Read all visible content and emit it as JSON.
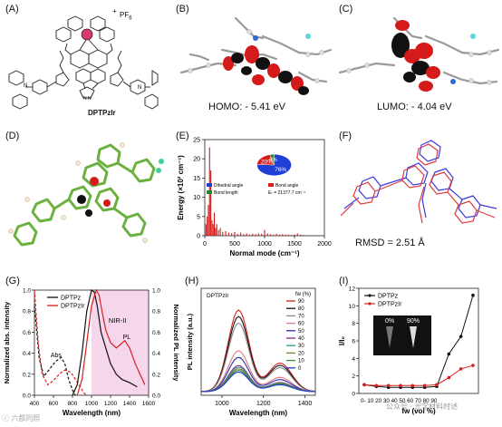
{
  "panels": {
    "A": {
      "label": "(A)",
      "molecule_name": "DPTPzIr",
      "counter_ion": "PF",
      "counter_ion_sub": "6",
      "charge": "+"
    },
    "B": {
      "label": "(B)",
      "caption": "HOMO: - 5.41 eV"
    },
    "C": {
      "label": "(C)",
      "caption": "LUMO: - 4.04 eV"
    },
    "D": {
      "label": "(D)"
    },
    "E": {
      "label": "(E)"
    },
    "F": {
      "label": "(F)",
      "caption": "RMSD = 2.51 Å"
    },
    "G": {
      "label": "(G)",
      "annotation_nir": "NIR-II",
      "annotation_abs": "Abs",
      "annotation_pl": "PL"
    },
    "H": {
      "label": "(H)",
      "title_inset": "DPTPzIr"
    },
    "I": {
      "label": "(I)",
      "inset_labels": [
        "0%",
        "90%"
      ]
    }
  },
  "watermark": {
    "left": "ⓒ 六都同照",
    "right": "公众号 · 光学材料时述"
  },
  "chart_data": [
    {
      "id": "E",
      "type": "bar",
      "xlabel": "Normal mode (cm⁻¹)",
      "ylabel": "Energy (×10² cm⁻¹)",
      "xlim": [
        0,
        2000
      ],
      "ylim": [
        0,
        25
      ],
      "xticks": [
        "0",
        "500",
        "1000",
        "1500",
        "2000"
      ],
      "yticks": [
        "0",
        "5",
        "10",
        "15",
        "20",
        "25"
      ],
      "x": [
        20,
        40,
        60,
        80,
        100,
        120,
        140,
        160,
        180,
        200,
        230,
        260,
        300,
        350,
        400,
        450,
        500,
        550,
        600,
        650,
        700,
        750,
        800,
        850,
        900,
        950,
        1000,
        1050,
        1100,
        1150,
        1200,
        1250,
        1300,
        1350,
        1400,
        1450,
        1500,
        1550,
        1600,
        1650
      ],
      "values": [
        3,
        5,
        8,
        23,
        17,
        4,
        3,
        6,
        2,
        3,
        1.5,
        2,
        1,
        1.2,
        0.8,
        0.7,
        1,
        0.5,
        0.8,
        0.4,
        0.6,
        0.3,
        0.5,
        0.4,
        0.6,
        0.5,
        1.5,
        0.6,
        0.4,
        0.3,
        0.5,
        0.3,
        0.4,
        0.3,
        0.3,
        0.2,
        0.3,
        0.6,
        0.3,
        0.2
      ],
      "pie": {
        "slices": [
          {
            "name": "Dihedral angle",
            "percent": 76,
            "label": "76%",
            "color": "#1f3fd6"
          },
          {
            "name": "Bond angle",
            "percent": 20,
            "label": "20%",
            "color": "#e01a1a"
          },
          {
            "name": "Bond length",
            "percent": 4,
            "label": "4%",
            "color": "#1b8a2a"
          }
        ],
        "total": "Eₜ = 21377.7 cm⁻¹"
      }
    },
    {
      "id": "G",
      "type": "line",
      "xlabel": "Wavelength (nm)",
      "ylabel_left": "Normalized abs. intensity",
      "ylabel_right": "Normalized PL intensity",
      "xlim": [
        400,
        1600
      ],
      "ylim": [
        0,
        1.0
      ],
      "xticks": [
        "400",
        "600",
        "800",
        "1000",
        "1200",
        "1400",
        "1600"
      ],
      "yticks": [
        "0.0",
        "0.2",
        "0.4",
        "0.6",
        "0.8",
        "1.0"
      ],
      "shade_start": 1000,
      "legend": [
        "DPTPz",
        "DPTPzIr"
      ],
      "series": [
        {
          "name": "DPTPz",
          "style": "dashed",
          "color": "#111111",
          "x": [
            400,
            450,
            500,
            560,
            620,
            680,
            720,
            760,
            800,
            830
          ],
          "y": [
            0.85,
            0.35,
            0.18,
            0.25,
            0.32,
            0.36,
            0.3,
            0.15,
            0.05,
            0.0
          ]
        },
        {
          "name": "DPTPzIr",
          "style": "dashed",
          "color": "#d62020",
          "x": [
            400,
            440,
            480,
            540,
            600,
            660,
            720,
            780,
            840,
            900,
            940
          ],
          "y": [
            1.0,
            0.5,
            0.2,
            0.1,
            0.14,
            0.2,
            0.24,
            0.22,
            0.14,
            0.05,
            0.0
          ]
        },
        {
          "name": "DPTPz",
          "style": "solid",
          "color": "#111111",
          "x": [
            800,
            850,
            900,
            950,
            1000,
            1030,
            1060,
            1100,
            1150,
            1200,
            1260,
            1320,
            1400,
            1480
          ],
          "y": [
            0.0,
            0.1,
            0.4,
            0.8,
            1.0,
            0.98,
            0.85,
            0.6,
            0.45,
            0.3,
            0.2,
            0.15,
            0.12,
            0.08
          ]
        },
        {
          "name": "DPTPzIr",
          "style": "solid",
          "color": "#d62020",
          "x": [
            850,
            900,
            950,
            1000,
            1050,
            1080,
            1110,
            1150,
            1200,
            1260,
            1300,
            1350,
            1400,
            1460,
            1520,
            1560
          ],
          "y": [
            0.0,
            0.15,
            0.5,
            0.85,
            1.0,
            0.95,
            0.8,
            0.62,
            0.5,
            0.45,
            0.48,
            0.52,
            0.45,
            0.3,
            0.18,
            0.1
          ]
        }
      ]
    },
    {
      "id": "H",
      "type": "line",
      "xlabel": "Wavelength (nm)",
      "ylabel": "PL intensity (a.u.)",
      "xlim": [
        900,
        1450
      ],
      "xticks": [
        "1000",
        "1200",
        "1400"
      ],
      "legend_title": "fw (%)",
      "series": [
        {
          "name": "90",
          "color": "#d62020",
          "peak": 1.0
        },
        {
          "name": "80",
          "color": "#111111",
          "peak": 0.92
        },
        {
          "name": "70",
          "color": "#888888",
          "peak": 0.84
        },
        {
          "name": "60",
          "color": "#e07a7a",
          "peak": 0.5
        },
        {
          "name": "50",
          "color": "#2a2aa8",
          "peak": 0.42
        },
        {
          "name": "40",
          "color": "#8a2a8a",
          "peak": 0.32
        },
        {
          "name": "30",
          "color": "#2a9a9a",
          "peak": 0.3
        },
        {
          "name": "20",
          "color": "#8a7a2a",
          "peak": 0.28
        },
        {
          "name": "10",
          "color": "#3a8a3a",
          "peak": 0.26
        },
        {
          "name": "0",
          "color": "#1a3ad6",
          "peak": 0.24
        }
      ]
    },
    {
      "id": "I",
      "type": "line",
      "xlabel": "fw (vol %)",
      "ylabel": "I/I₀",
      "ylim": [
        0,
        12
      ],
      "yticks": [
        "0",
        "2",
        "4",
        "6",
        "8",
        "10",
        "12"
      ],
      "categories": [
        "0",
        "10",
        "20",
        "30",
        "40",
        "50",
        "60",
        "70",
        "80",
        "90"
      ],
      "xtick_text": "0- 10 20 30 40 50 60 70 80 90",
      "legend": [
        "DPTPz",
        "DPTPzIr"
      ],
      "series": [
        {
          "name": "DPTPz",
          "color": "#111111",
          "values": [
            1.0,
            0.8,
            0.7,
            0.7,
            0.7,
            0.7,
            0.8,
            4.5,
            6.5,
            11.2
          ]
        },
        {
          "name": "DPTPzIr",
          "color": "#d62020",
          "values": [
            1.0,
            0.9,
            0.9,
            0.9,
            0.9,
            0.9,
            1.0,
            1.8,
            2.8,
            3.2
          ]
        }
      ]
    }
  ]
}
